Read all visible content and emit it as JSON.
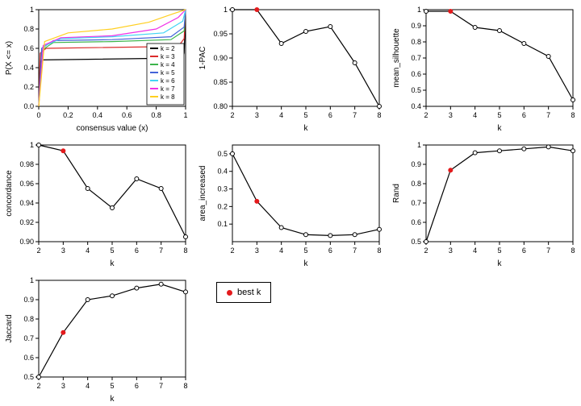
{
  "global": {
    "bg": "#ffffff",
    "axis_color": "#000000",
    "line_color": "#000000",
    "label_fontsize": 10,
    "tick_fontsize": 9,
    "best_color": "#e41a1c",
    "point_radius": 2.5
  },
  "cdf_panel": {
    "xlabel": "consensus value (x)",
    "ylabel": "P(X <= x)",
    "xlim": [
      0,
      1
    ],
    "ylim": [
      0,
      1
    ],
    "xticks": [
      0.0,
      0.2,
      0.4,
      0.6,
      0.8,
      1.0
    ],
    "yticks": [
      0.0,
      0.2,
      0.4,
      0.6,
      0.8,
      1.0
    ],
    "legend_title": null,
    "series": [
      {
        "label": "k = 2",
        "color": "#000000",
        "x": [
          0.0,
          0.01,
          0.02,
          0.98,
          0.99,
          1.0
        ],
        "y": [
          0.0,
          0.45,
          0.48,
          0.5,
          0.55,
          1.0
        ]
      },
      {
        "label": "k = 3",
        "color": "#db2b2b",
        "x": [
          0.0,
          0.01,
          0.05,
          0.95,
          0.99,
          1.0
        ],
        "y": [
          0.0,
          0.55,
          0.6,
          0.62,
          0.7,
          1.0
        ]
      },
      {
        "label": "k = 4",
        "color": "#3cb44b",
        "x": [
          0.0,
          0.02,
          0.1,
          0.5,
          0.9,
          0.99,
          1.0
        ],
        "y": [
          0.0,
          0.58,
          0.66,
          0.67,
          0.69,
          0.78,
          1.0
        ]
      },
      {
        "label": "k = 5",
        "color": "#4363d8",
        "x": [
          0.0,
          0.02,
          0.1,
          0.5,
          0.9,
          0.99,
          1.0
        ],
        "y": [
          0.0,
          0.6,
          0.68,
          0.69,
          0.72,
          0.82,
          1.0
        ]
      },
      {
        "label": "k = 6",
        "color": "#42d4f4",
        "x": [
          0.0,
          0.03,
          0.15,
          0.5,
          0.85,
          0.98,
          1.0
        ],
        "y": [
          0.0,
          0.62,
          0.7,
          0.72,
          0.76,
          0.88,
          1.0
        ]
      },
      {
        "label": "k = 7",
        "color": "#f032e6",
        "x": [
          0.0,
          0.03,
          0.15,
          0.5,
          0.8,
          0.95,
          1.0
        ],
        "y": [
          0.0,
          0.63,
          0.71,
          0.73,
          0.8,
          0.92,
          1.0
        ]
      },
      {
        "label": "k = 8",
        "color": "#ffcf20",
        "x": [
          0.0,
          0.04,
          0.2,
          0.5,
          0.75,
          0.92,
          1.0
        ],
        "y": [
          0.0,
          0.67,
          0.76,
          0.8,
          0.87,
          0.96,
          1.0
        ]
      }
    ]
  },
  "small_panels": [
    {
      "id": "pac",
      "ylabel": "1-PAC",
      "xlabel": "k",
      "xlim": [
        2,
        8
      ],
      "ylim": [
        0.8,
        1.0
      ],
      "xticks": [
        2,
        3,
        4,
        5,
        6,
        7,
        8
      ],
      "yticks": [
        0.8,
        0.85,
        0.9,
        0.95,
        1.0
      ],
      "best_k": 3,
      "data": [
        {
          "k": 2,
          "v": 1.0
        },
        {
          "k": 3,
          "v": 1.0
        },
        {
          "k": 4,
          "v": 0.93
        },
        {
          "k": 5,
          "v": 0.955
        },
        {
          "k": 6,
          "v": 0.965
        },
        {
          "k": 7,
          "v": 0.89
        },
        {
          "k": 8,
          "v": 0.8
        }
      ]
    },
    {
      "id": "silhouette",
      "ylabel": "mean_silhouette",
      "xlabel": "k",
      "xlim": [
        2,
        8
      ],
      "ylim": [
        0.4,
        1.0
      ],
      "xticks": [
        2,
        3,
        4,
        5,
        6,
        7,
        8
      ],
      "yticks": [
        0.4,
        0.5,
        0.6,
        0.7,
        0.8,
        0.9,
        1.0
      ],
      "best_k": 3,
      "data": [
        {
          "k": 2,
          "v": 0.99
        },
        {
          "k": 3,
          "v": 0.99
        },
        {
          "k": 4,
          "v": 0.89
        },
        {
          "k": 5,
          "v": 0.87
        },
        {
          "k": 6,
          "v": 0.79
        },
        {
          "k": 7,
          "v": 0.71
        },
        {
          "k": 8,
          "v": 0.44
        }
      ]
    },
    {
      "id": "concordance",
      "ylabel": "concordance",
      "xlabel": "k",
      "xlim": [
        2,
        8
      ],
      "ylim": [
        0.9,
        1.0
      ],
      "xticks": [
        2,
        3,
        4,
        5,
        6,
        7,
        8
      ],
      "yticks": [
        0.9,
        0.92,
        0.94,
        0.96,
        0.98,
        1.0
      ],
      "best_k": 3,
      "data": [
        {
          "k": 2,
          "v": 1.0
        },
        {
          "k": 3,
          "v": 0.994
        },
        {
          "k": 4,
          "v": 0.955
        },
        {
          "k": 5,
          "v": 0.935
        },
        {
          "k": 6,
          "v": 0.965
        },
        {
          "k": 7,
          "v": 0.955
        },
        {
          "k": 8,
          "v": 0.905
        }
      ]
    },
    {
      "id": "area",
      "ylabel": "area_increased",
      "xlabel": "k",
      "xlim": [
        2,
        8
      ],
      "ylim": [
        0.0,
        0.55
      ],
      "xticks": [
        2,
        3,
        4,
        5,
        6,
        7,
        8
      ],
      "yticks": [
        0.1,
        0.2,
        0.3,
        0.4,
        0.5
      ],
      "best_k": 3,
      "data": [
        {
          "k": 2,
          "v": 0.5
        },
        {
          "k": 3,
          "v": 0.23
        },
        {
          "k": 4,
          "v": 0.08
        },
        {
          "k": 5,
          "v": 0.04
        },
        {
          "k": 6,
          "v": 0.035
        },
        {
          "k": 7,
          "v": 0.04
        },
        {
          "k": 8,
          "v": 0.07
        }
      ]
    },
    {
      "id": "rand",
      "ylabel": "Rand",
      "xlabel": "k",
      "xlim": [
        2,
        8
      ],
      "ylim": [
        0.5,
        1.0
      ],
      "xticks": [
        2,
        3,
        4,
        5,
        6,
        7,
        8
      ],
      "yticks": [
        0.5,
        0.6,
        0.7,
        0.8,
        0.9,
        1.0
      ],
      "best_k": 3,
      "data": [
        {
          "k": 2,
          "v": 0.5
        },
        {
          "k": 3,
          "v": 0.87
        },
        {
          "k": 4,
          "v": 0.96
        },
        {
          "k": 5,
          "v": 0.97
        },
        {
          "k": 6,
          "v": 0.98
        },
        {
          "k": 7,
          "v": 0.99
        },
        {
          "k": 8,
          "v": 0.97
        }
      ]
    },
    {
      "id": "jaccard",
      "ylabel": "Jaccard",
      "xlabel": "k",
      "xlim": [
        2,
        8
      ],
      "ylim": [
        0.5,
        1.0
      ],
      "xticks": [
        2,
        3,
        4,
        5,
        6,
        7,
        8
      ],
      "yticks": [
        0.5,
        0.6,
        0.7,
        0.8,
        0.9,
        1.0
      ],
      "best_k": 3,
      "data": [
        {
          "k": 2,
          "v": 0.5
        },
        {
          "k": 3,
          "v": 0.73
        },
        {
          "k": 4,
          "v": 0.9
        },
        {
          "k": 5,
          "v": 0.92
        },
        {
          "k": 6,
          "v": 0.96
        },
        {
          "k": 7,
          "v": 0.98
        },
        {
          "k": 8,
          "v": 0.94
        }
      ]
    }
  ],
  "legend_bestk": {
    "label": "best k",
    "color": "#e41a1c"
  }
}
